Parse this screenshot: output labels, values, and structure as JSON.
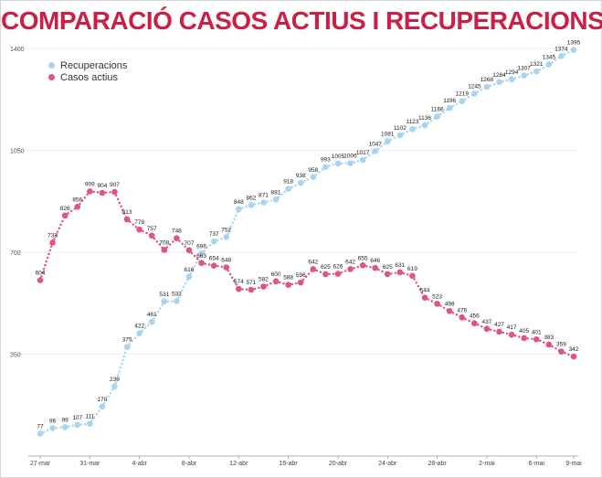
{
  "chart_data": {
    "type": "line",
    "title": "COMPARACIÓ CASOS ACTIUS I RECUPERACIONS",
    "title_color": "#cc1f45",
    "x_tick_labels": [
      "27-mar",
      "31-mar",
      "4-abr",
      "8-abr",
      "12-abr",
      "16-abr",
      "20-abr",
      "24-abr",
      "28-abr",
      "2-mai",
      "6-mai",
      "9-mai"
    ],
    "y_ticks": [
      350,
      700,
      1050,
      1400
    ],
    "ylim": [
      0,
      1400
    ],
    "grid": true,
    "legend_position": "top-left",
    "x": [
      "27-mar",
      "28-mar",
      "29-mar",
      "30-mar",
      "31-mar",
      "1-abr",
      "2-abr",
      "3-abr",
      "4-abr",
      "5-abr",
      "6-abr",
      "7-abr",
      "8-abr",
      "9-abr",
      "10-abr",
      "11-abr",
      "12-abr",
      "13-abr",
      "14-abr",
      "15-abr",
      "16-abr",
      "17-abr",
      "18-abr",
      "19-abr",
      "20-abr",
      "21-abr",
      "22-abr",
      "23-abr",
      "24-abr",
      "25-abr",
      "26-abr",
      "27-abr",
      "28-abr",
      "29-abr",
      "30-abr",
      "1-mai",
      "2-mai",
      "3-mai",
      "4-mai",
      "5-mai",
      "6-mai",
      "7-mai",
      "8-mai",
      "9-mai"
    ],
    "series": [
      {
        "name": "Recuperacions",
        "color": "#a8d4f0",
        "labeled_points": [
          {
            "x": "27-mar",
            "y": 77
          },
          {
            "x": "28-mar",
            "y": 96
          },
          {
            "x": "29-mar",
            "y": 99
          },
          {
            "x": "30-mar",
            "y": 107
          },
          {
            "x": "31-mar",
            "y": 111
          },
          {
            "x": "1-abr",
            "y": 170
          },
          {
            "x": "2-abr",
            "y": 239
          },
          {
            "x": "3-abr",
            "y": 375
          },
          {
            "x": "4-abr",
            "y": 422
          },
          {
            "x": "5-abr",
            "y": 461
          },
          {
            "x": "6-abr",
            "y": 531
          },
          {
            "x": "7-abr",
            "y": 532
          },
          {
            "x": "8-abr",
            "y": 616
          },
          {
            "x": "9-abr",
            "y": 696
          },
          {
            "x": "10-abr",
            "y": 737
          },
          {
            "x": "11-abr",
            "y": 752
          },
          {
            "x": "12-abr",
            "y": 848
          },
          {
            "x": "13-abr",
            "y": 862
          },
          {
            "x": "14-abr",
            "y": 871
          },
          {
            "x": "15-abr",
            "y": 881
          },
          {
            "x": "16-abr",
            "y": 918
          },
          {
            "x": "17-abr",
            "y": 938
          },
          {
            "x": "18-abr",
            "y": 958
          },
          {
            "x": "19-abr",
            "y": 993
          },
          {
            "x": "20-abr",
            "y": 1005
          },
          {
            "x": "21-abr",
            "y": 1006
          },
          {
            "x": "22-abr",
            "y": 1017
          },
          {
            "x": "23-abr",
            "y": 1047
          },
          {
            "x": "24-abr",
            "y": 1081
          },
          {
            "x": "25-abr",
            "y": 1102
          },
          {
            "x": "26-abr",
            "y": 1123
          },
          {
            "x": "27-abr",
            "y": 1136
          },
          {
            "x": "28-abr",
            "y": 1166
          },
          {
            "x": "29-abr",
            "y": 1196
          },
          {
            "x": "30-abr",
            "y": 1219
          },
          {
            "x": "1-mai",
            "y": 1245
          },
          {
            "x": "2-mai",
            "y": 1268
          },
          {
            "x": "3-mai",
            "y": 1284
          },
          {
            "x": "4-mai",
            "y": 1294
          },
          {
            "x": "5-mai",
            "y": 1307
          },
          {
            "x": "6-mai",
            "y": 1321
          },
          {
            "x": "7-mai",
            "y": 1345
          },
          {
            "x": "8-mai",
            "y": 1374
          },
          {
            "x": "9-mai",
            "y": 1395
          }
        ]
      },
      {
        "name": "Casos actius",
        "color": "#e0557a",
        "labeled_points": [
          {
            "x": "27-mar",
            "y": 604
          },
          {
            "x": "28-mar",
            "y": 733
          },
          {
            "x": "29-mar",
            "y": 826
          },
          {
            "x": "30-mar",
            "y": 856
          },
          {
            "x": "31-mar",
            "y": 909
          },
          {
            "x": "1-abr",
            "y": 904
          },
          {
            "x": "2-abr",
            "y": 907
          },
          {
            "x": "3-abr",
            "y": 813
          },
          {
            "x": "4-abr",
            "y": 778
          },
          {
            "x": "5-abr",
            "y": 757
          },
          {
            "x": "6-abr",
            "y": 708
          },
          {
            "x": "7-abr",
            "y": 748
          },
          {
            "x": "8-abr",
            "y": 707
          },
          {
            "x": "9-abr",
            "y": 663
          },
          {
            "x": "10-abr",
            "y": 654
          },
          {
            "x": "11-abr",
            "y": 648
          },
          {
            "x": "12-abr",
            "y": 574
          },
          {
            "x": "13-abr",
            "y": 571
          },
          {
            "x": "14-abr",
            "y": 582
          },
          {
            "x": "15-abr",
            "y": 600
          },
          {
            "x": "16-abr",
            "y": 588
          },
          {
            "x": "17-abr",
            "y": 596
          },
          {
            "x": "18-abr",
            "y": 642
          },
          {
            "x": "19-abr",
            "y": 625
          },
          {
            "x": "20-abr",
            "y": 626
          },
          {
            "x": "21-abr",
            "y": 642
          },
          {
            "x": "22-abr",
            "y": 655
          },
          {
            "x": "23-abr",
            "y": 646
          },
          {
            "x": "24-abr",
            "y": 625
          },
          {
            "x": "25-abr",
            "y": 631
          },
          {
            "x": "26-abr",
            "y": 619
          },
          {
            "x": "27-abr",
            "y": 544
          },
          {
            "x": "28-abr",
            "y": 523
          },
          {
            "x": "29-abr",
            "y": 498
          },
          {
            "x": "30-abr",
            "y": 476
          },
          {
            "x": "1-mai",
            "y": 456
          },
          {
            "x": "2-mai",
            "y": 437
          },
          {
            "x": "3-mai",
            "y": 427
          },
          {
            "x": "4-mai",
            "y": 417
          },
          {
            "x": "5-mai",
            "y": 405
          },
          {
            "x": "6-mai",
            "y": 401
          },
          {
            "x": "7-mai",
            "y": 383
          },
          {
            "x": "8-mai",
            "y": 359
          },
          {
            "x": "9-mai",
            "y": 342
          }
        ]
      }
    ]
  }
}
